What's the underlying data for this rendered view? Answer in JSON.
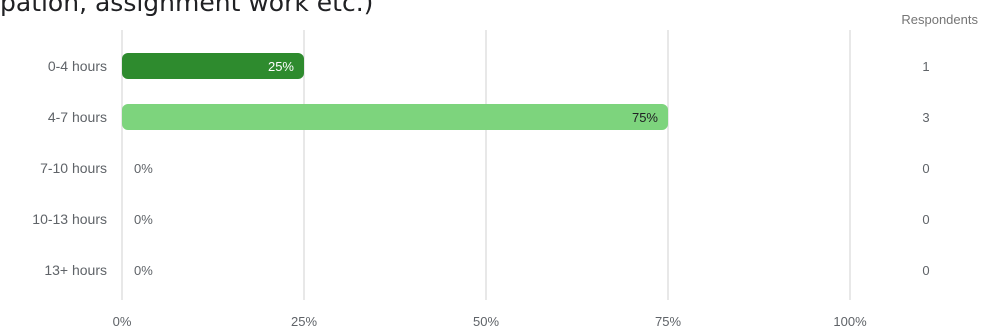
{
  "question": {
    "title_fragment": "pation, assignment work etc.)"
  },
  "respondents_header": "Respondents",
  "colors": {
    "bar_primary": "#2e8b2e",
    "bar_secondary": "#7dd47d",
    "gridline": "#d0d0d0",
    "axis_text": "#5f6368"
  },
  "chart_data": {
    "type": "bar",
    "orientation": "horizontal",
    "categories": [
      "0-4 hours",
      "4-7 hours",
      "7-10 hours",
      "10-13 hours",
      "13+ hours"
    ],
    "values": [
      25,
      75,
      0,
      0,
      0
    ],
    "value_labels": [
      "25%",
      "75%",
      "0%",
      "0%",
      "0%"
    ],
    "respondents": [
      1,
      3,
      0,
      0,
      0
    ],
    "xlim": [
      0,
      100
    ],
    "xticks": [
      "0%",
      "25%",
      "50%",
      "75%",
      "100%"
    ],
    "grid": true,
    "title": "",
    "xlabel": "",
    "ylabel": ""
  }
}
